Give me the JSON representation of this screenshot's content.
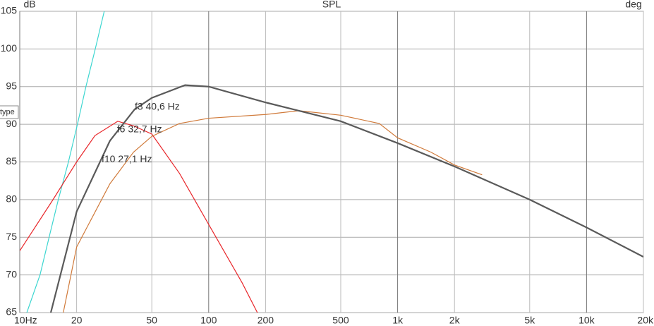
{
  "chart_data": {
    "type": "line",
    "title": "SPL",
    "y_label": "dB",
    "y2_label": "deg",
    "tooltip": "type",
    "log_x": true,
    "grid": true,
    "xlim": [
      10,
      20000
    ],
    "ylim": [
      65,
      105
    ],
    "xticks": [
      {
        "value": 10,
        "label": "10Hz"
      },
      20,
      50,
      100,
      200,
      500,
      {
        "value": 1000,
        "label": "1k"
      },
      {
        "value": 2000,
        "label": "2k"
      },
      {
        "value": 5000,
        "label": "5k"
      },
      {
        "value": 10000,
        "label": "10k"
      },
      {
        "value": 20000,
        "label": "20k"
      }
    ],
    "yticks": [
      65,
      70,
      75,
      80,
      85,
      90,
      95,
      100,
      105
    ],
    "series": [
      {
        "color": "#3cd6d0",
        "x": [
          10.9,
          12.8,
          14.3,
          16,
          18.1,
          20.2,
          22.4,
          25.1,
          28
        ],
        "values": [
          65,
          70,
          75,
          80,
          85,
          90,
          95,
          100,
          105
        ]
      },
      {
        "color": "#e8262a",
        "x": [
          10,
          15,
          20,
          25,
          33,
          40,
          50,
          70,
          100,
          150,
          181
        ],
        "values": [
          73.2,
          80,
          85,
          88.5,
          90.4,
          89.8,
          88.7,
          83.5,
          76.7,
          69,
          65
        ]
      },
      {
        "color": "#d07a3a",
        "x": [
          17,
          20,
          30,
          40,
          50,
          70,
          100,
          200,
          300,
          500,
          800,
          1000,
          1500,
          2000,
          2800
        ],
        "values": [
          65,
          73.7,
          82.1,
          86.3,
          88.4,
          90.1,
          90.8,
          91.3,
          91.8,
          91.2,
          90.1,
          88.2,
          86.3,
          84.6,
          83.3
        ]
      },
      {
        "color": "#5a5a5a",
        "x": [
          14.6,
          20,
          30,
          40.6,
          50,
          75,
          100,
          200,
          300,
          500,
          1000,
          2000,
          5000,
          10000,
          20000
        ],
        "values": [
          65,
          78.4,
          87.8,
          92,
          93.5,
          95.2,
          95,
          92.9,
          91.8,
          90.4,
          87.5,
          84.4,
          80,
          76.3,
          72.4
        ]
      }
    ],
    "annotations": [
      {
        "text": "f3 40,6 Hz",
        "x": 40.6,
        "y": 92.3
      },
      {
        "text": "f6 32,7 Hz",
        "x": 32.7,
        "y": 89.3
      },
      {
        "text": "f10 27,1 Hz",
        "x": 27.1,
        "y": 85.3
      }
    ]
  }
}
